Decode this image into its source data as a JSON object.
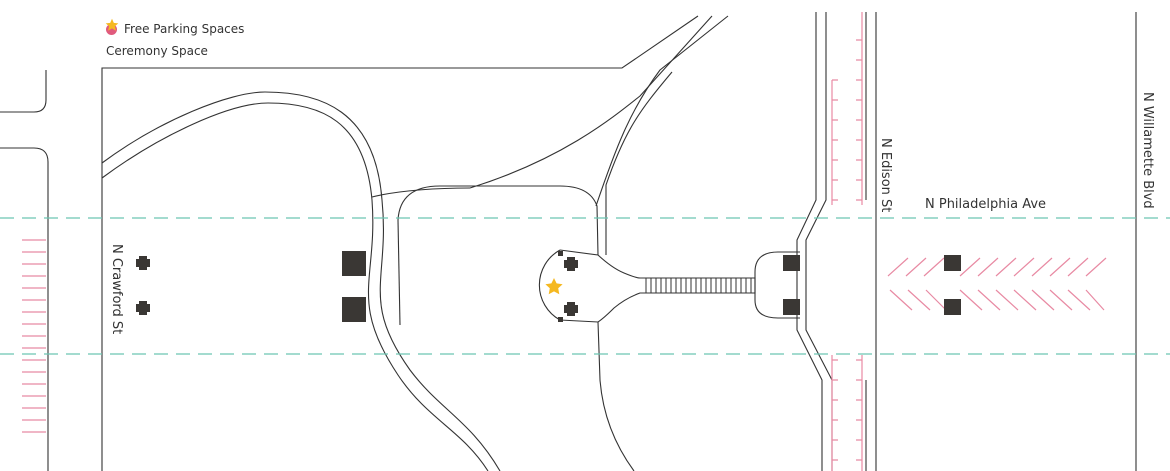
{
  "legend": {
    "parking": {
      "label": "Free Parking Spaces",
      "color": "#e05a7d"
    },
    "ceremony": {
      "label": "Ceremony Space",
      "color": "#f5b820"
    }
  },
  "streets": {
    "philadelphia": "N Philadelphia Ave",
    "crawford": "N Crawford St",
    "edison": "N Edison St",
    "willamette": "N Willamette Blvd"
  },
  "colors": {
    "road_line": "#333333",
    "dashed_line": "#6cc5b2",
    "parking_stripe": "#e88aa3",
    "pillar": "#3a3734",
    "star": "#f5b820"
  },
  "icons": {
    "parking": "pink-dot-icon",
    "ceremony": "star-icon"
  }
}
